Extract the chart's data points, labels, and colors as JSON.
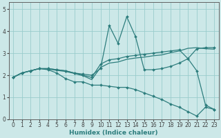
{
  "title": "",
  "xlabel": "Humidex (Indice chaleur)",
  "bg_color": "#cce8e8",
  "grid_color": "#99cccc",
  "line_color": "#2d7d7d",
  "xlim": [
    -0.5,
    23.5
  ],
  "ylim": [
    0,
    5.3
  ],
  "xticks": [
    0,
    1,
    2,
    3,
    4,
    5,
    6,
    7,
    8,
    9,
    10,
    11,
    12,
    13,
    14,
    15,
    16,
    17,
    18,
    19,
    20,
    21,
    22,
    23
  ],
  "yticks": [
    0,
    1,
    2,
    3,
    4,
    5
  ],
  "lines": [
    {
      "x": [
        0,
        1,
        2,
        3,
        4,
        5,
        6,
        7,
        8,
        9,
        10,
        11,
        12,
        13,
        14,
        15,
        16,
        17,
        18,
        19,
        20,
        21,
        22,
        23
      ],
      "y": [
        1.9,
        2.1,
        2.2,
        2.3,
        2.25,
        2.1,
        1.85,
        1.7,
        1.7,
        1.55,
        1.55,
        1.5,
        1.45,
        1.45,
        1.35,
        1.2,
        1.05,
        0.9,
        0.7,
        0.55,
        0.35,
        0.15,
        0.55,
        0.45
      ],
      "has_markers": true
    },
    {
      "x": [
        0,
        1,
        2,
        3,
        4,
        5,
        6,
        7,
        8,
        9,
        10,
        11,
        12,
        13,
        14,
        15,
        16,
        17,
        18,
        19,
        20,
        21,
        22,
        23
      ],
      "y": [
        1.9,
        2.1,
        2.2,
        2.3,
        2.3,
        2.25,
        2.2,
        2.1,
        2.05,
        2.0,
        2.3,
        4.25,
        3.45,
        4.65,
        3.75,
        2.25,
        2.25,
        2.3,
        2.4,
        2.55,
        2.75,
        3.2,
        3.25,
        3.25
      ],
      "has_markers": true
    },
    {
      "x": [
        0,
        1,
        2,
        3,
        4,
        5,
        6,
        7,
        8,
        9,
        10,
        11,
        12,
        13,
        14,
        15,
        16,
        17,
        18,
        19,
        20,
        21,
        22,
        23
      ],
      "y": [
        1.9,
        2.1,
        2.2,
        2.3,
        2.3,
        2.25,
        2.2,
        2.1,
        2.0,
        1.9,
        2.5,
        2.7,
        2.75,
        2.85,
        2.9,
        2.95,
        3.0,
        3.05,
        3.1,
        3.15,
        2.75,
        2.2,
        0.65,
        0.45
      ],
      "has_markers": true
    },
    {
      "x": [
        0,
        1,
        2,
        3,
        4,
        5,
        6,
        7,
        8,
        9,
        10,
        11,
        12,
        13,
        14,
        15,
        16,
        17,
        18,
        19,
        20,
        21,
        22,
        23
      ],
      "y": [
        1.9,
        2.1,
        2.2,
        2.3,
        2.28,
        2.22,
        2.17,
        2.08,
        1.98,
        1.8,
        2.35,
        2.55,
        2.6,
        2.72,
        2.78,
        2.82,
        2.88,
        2.92,
        3.02,
        3.1,
        3.22,
        3.25,
        3.2,
        3.18
      ],
      "has_markers": false
    }
  ],
  "markersize": 2.0,
  "linewidth": 0.9,
  "tick_fontsize": 5.5,
  "xlabel_fontsize": 6.5
}
